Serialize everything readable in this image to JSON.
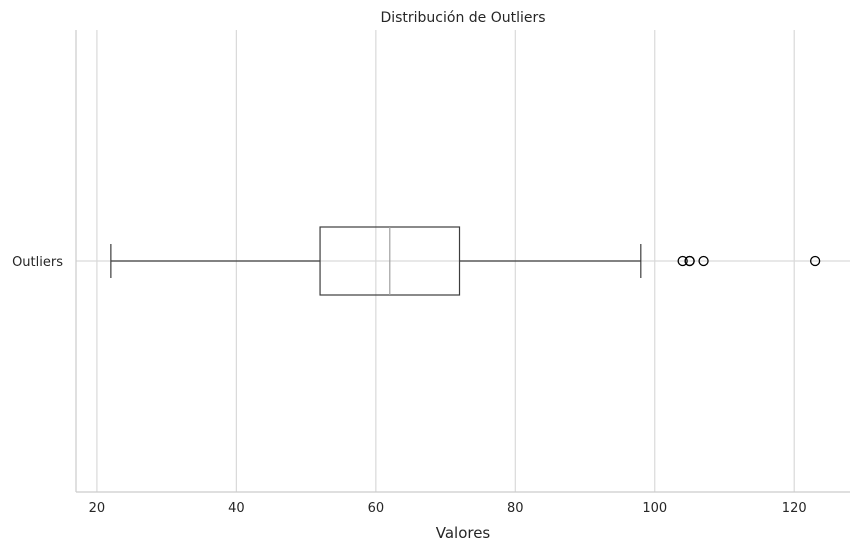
{
  "chart_data": {
    "type": "box",
    "orientation": "horizontal",
    "title": "Distribución de Outliers",
    "xlabel": "Valores",
    "ylabel": "",
    "xlim": [
      17,
      128
    ],
    "xticks": [
      20,
      40,
      60,
      80,
      100,
      120
    ],
    "grid": true,
    "categories": [
      "Outliers"
    ],
    "series": [
      {
        "label": "Outliers",
        "whisker_low": 22,
        "q1": 52,
        "median": 62,
        "q3": 72,
        "whisker_high": 98,
        "fliers": [
          104,
          105,
          105,
          107,
          123
        ]
      }
    ],
    "colors": {
      "box_edge": "#3d3d3d",
      "median": "#a0a0a0",
      "grid": "#d9d9d9",
      "flier": "#000000"
    }
  }
}
